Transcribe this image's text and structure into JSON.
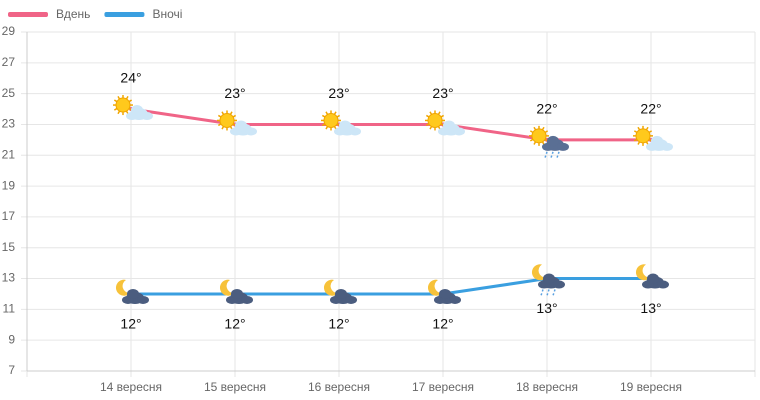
{
  "chart_data": {
    "type": "line",
    "categories": [
      "14 вересня",
      "15 вересня",
      "16 вересня",
      "17 вересня",
      "18 вересня",
      "19 вересня"
    ],
    "series": [
      {
        "name": "Вдень",
        "color": "#f06487",
        "values": [
          24,
          23,
          23,
          23,
          22,
          22
        ],
        "value_labels": [
          "24°",
          "23°",
          "23°",
          "23°",
          "22°",
          "22°"
        ]
      },
      {
        "name": "Вночі",
        "color": "#3a9fe0",
        "values": [
          12,
          12,
          12,
          12,
          13,
          13
        ],
        "value_labels": [
          "12°",
          "12°",
          "12°",
          "12°",
          "13°",
          "13°"
        ]
      }
    ],
    "ylim": [
      7,
      29
    ],
    "yticks": [
      7,
      9,
      11,
      13,
      15,
      17,
      19,
      21,
      23,
      25,
      27,
      29
    ],
    "grid": true,
    "legend": "top-left"
  }
}
